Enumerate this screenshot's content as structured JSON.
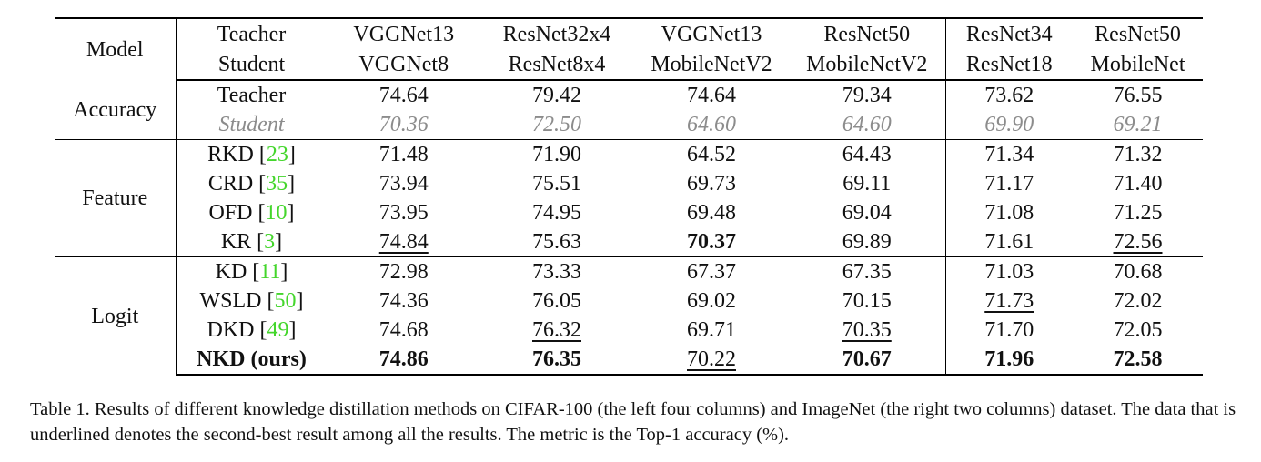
{
  "table": {
    "header": {
      "model": "Model",
      "teacher": "Teacher",
      "student": "Student",
      "columns": [
        {
          "teacher": "VGGNet13",
          "student": "VGGNet8"
        },
        {
          "teacher": "ResNet32x4",
          "student": "ResNet8x4"
        },
        {
          "teacher": "VGGNet13",
          "student": "MobileNetV2"
        },
        {
          "teacher": "ResNet50",
          "student": "MobileNetV2"
        },
        {
          "teacher": "ResNet34",
          "student": "ResNet18"
        },
        {
          "teacher": "ResNet50",
          "student": "MobileNet"
        }
      ]
    },
    "groups": [
      {
        "name": "Accuracy",
        "rows": [
          {
            "method": "Teacher",
            "ref": "",
            "bold_method": false,
            "italic": false,
            "values": [
              {
                "v": "74.64",
                "s": ""
              },
              {
                "v": "79.42",
                "s": ""
              },
              {
                "v": "74.64",
                "s": ""
              },
              {
                "v": "79.34",
                "s": ""
              },
              {
                "v": "73.62",
                "s": ""
              },
              {
                "v": "76.55",
                "s": ""
              }
            ]
          },
          {
            "method": "Student",
            "ref": "",
            "bold_method": false,
            "italic": true,
            "values": [
              {
                "v": "70.36",
                "s": ""
              },
              {
                "v": "72.50",
                "s": ""
              },
              {
                "v": "64.60",
                "s": ""
              },
              {
                "v": "64.60",
                "s": ""
              },
              {
                "v": "69.90",
                "s": ""
              },
              {
                "v": "69.21",
                "s": ""
              }
            ]
          }
        ]
      },
      {
        "name": "Feature",
        "rows": [
          {
            "method": "RKD",
            "ref": "23",
            "bold_method": false,
            "italic": false,
            "values": [
              {
                "v": "71.48",
                "s": ""
              },
              {
                "v": "71.90",
                "s": ""
              },
              {
                "v": "64.52",
                "s": ""
              },
              {
                "v": "64.43",
                "s": ""
              },
              {
                "v": "71.34",
                "s": ""
              },
              {
                "v": "71.32",
                "s": ""
              }
            ]
          },
          {
            "method": "CRD",
            "ref": "35",
            "bold_method": false,
            "italic": false,
            "values": [
              {
                "v": "73.94",
                "s": ""
              },
              {
                "v": "75.51",
                "s": ""
              },
              {
                "v": "69.73",
                "s": ""
              },
              {
                "v": "69.11",
                "s": ""
              },
              {
                "v": "71.17",
                "s": ""
              },
              {
                "v": "71.40",
                "s": ""
              }
            ]
          },
          {
            "method": "OFD",
            "ref": "10",
            "bold_method": false,
            "italic": false,
            "values": [
              {
                "v": "73.95",
                "s": ""
              },
              {
                "v": "74.95",
                "s": ""
              },
              {
                "v": "69.48",
                "s": ""
              },
              {
                "v": "69.04",
                "s": ""
              },
              {
                "v": "71.08",
                "s": ""
              },
              {
                "v": "71.25",
                "s": ""
              }
            ]
          },
          {
            "method": "KR",
            "ref": "3",
            "bold_method": false,
            "italic": false,
            "values": [
              {
                "v": "74.84",
                "s": "underline"
              },
              {
                "v": "75.63",
                "s": ""
              },
              {
                "v": "70.37",
                "s": "bold"
              },
              {
                "v": "69.89",
                "s": ""
              },
              {
                "v": "71.61",
                "s": ""
              },
              {
                "v": "72.56",
                "s": "underline"
              }
            ]
          }
        ]
      },
      {
        "name": "Logit",
        "rows": [
          {
            "method": "KD",
            "ref": "11",
            "bold_method": false,
            "italic": false,
            "values": [
              {
                "v": "72.98",
                "s": ""
              },
              {
                "v": "73.33",
                "s": ""
              },
              {
                "v": "67.37",
                "s": ""
              },
              {
                "v": "67.35",
                "s": ""
              },
              {
                "v": "71.03",
                "s": ""
              },
              {
                "v": "70.68",
                "s": ""
              }
            ]
          },
          {
            "method": "WSLD",
            "ref": "50",
            "bold_method": false,
            "italic": false,
            "values": [
              {
                "v": "74.36",
                "s": ""
              },
              {
                "v": "76.05",
                "s": ""
              },
              {
                "v": "69.02",
                "s": ""
              },
              {
                "v": "70.15",
                "s": ""
              },
              {
                "v": "71.73",
                "s": "underline"
              },
              {
                "v": "72.02",
                "s": ""
              }
            ]
          },
          {
            "method": "DKD",
            "ref": "49",
            "bold_method": false,
            "italic": false,
            "values": [
              {
                "v": "74.68",
                "s": ""
              },
              {
                "v": "76.32",
                "s": "underline"
              },
              {
                "v": "69.71",
                "s": ""
              },
              {
                "v": "70.35",
                "s": "underline"
              },
              {
                "v": "71.70",
                "s": ""
              },
              {
                "v": "72.05",
                "s": ""
              }
            ]
          },
          {
            "method": "NKD (ours)",
            "ref": "",
            "bold_method": true,
            "italic": false,
            "values": [
              {
                "v": "74.86",
                "s": "bold"
              },
              {
                "v": "76.35",
                "s": "bold"
              },
              {
                "v": "70.22",
                "s": "underline"
              },
              {
                "v": "70.67",
                "s": "bold"
              },
              {
                "v": "71.96",
                "s": "bold"
              },
              {
                "v": "72.58",
                "s": "bold"
              }
            ]
          }
        ]
      }
    ]
  },
  "caption": "Table 1. Results of different knowledge distillation methods on CIFAR-100 (the left four columns) and ImageNet (the right two columns) dataset. The data that is underlined denotes the second-best result among all the results. The metric is the Top-1 accuracy (%).",
  "colors": {
    "ref_link": "#44d62c",
    "student_text": "#8c8c8c"
  }
}
